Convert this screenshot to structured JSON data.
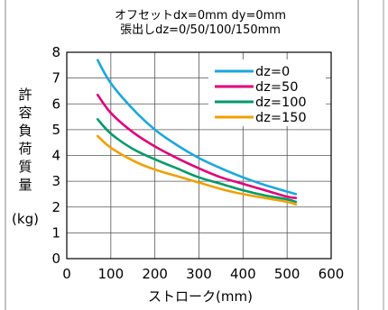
{
  "chart_data": {
    "type": "line",
    "title": "オフセットdx=0mm dy=0mm",
    "subtitle": "張出しdz=0/50/100/150mm",
    "xlabel": "ストローク(mm)",
    "ylabel_chars": [
      "許",
      "容",
      "負",
      "荷",
      "質",
      "量"
    ],
    "ylabel_unit": "(kg)",
    "xlim": [
      0,
      600
    ],
    "ylim": [
      0,
      8
    ],
    "xticks": [
      "0",
      "100",
      "200",
      "300",
      "400",
      "500",
      "600"
    ],
    "yticks": [
      "0",
      "1",
      "2",
      "3",
      "4",
      "5",
      "6",
      "7",
      "8"
    ],
    "grid": true,
    "legend_position": "top-right",
    "x": [
      70,
      100,
      150,
      200,
      250,
      300,
      350,
      400,
      450,
      500,
      520
    ],
    "series": [
      {
        "name": "dz=0",
        "color": "#1aa7e0",
        "values": [
          7.7,
          6.8,
          5.8,
          5.0,
          4.4,
          3.9,
          3.5,
          3.15,
          2.85,
          2.6,
          2.5
        ]
      },
      {
        "name": "dz=50",
        "color": "#e2007a",
        "values": [
          6.35,
          5.65,
          4.9,
          4.35,
          3.9,
          3.5,
          3.15,
          2.9,
          2.65,
          2.4,
          2.35
        ]
      },
      {
        "name": "dz=100",
        "color": "#009a6a",
        "values": [
          5.4,
          4.85,
          4.25,
          3.85,
          3.5,
          3.15,
          2.9,
          2.65,
          2.45,
          2.3,
          2.2
        ]
      },
      {
        "name": "dz=150",
        "color": "#f0a000",
        "values": [
          4.75,
          4.3,
          3.8,
          3.45,
          3.2,
          2.95,
          2.7,
          2.5,
          2.35,
          2.2,
          2.1
        ]
      }
    ]
  }
}
